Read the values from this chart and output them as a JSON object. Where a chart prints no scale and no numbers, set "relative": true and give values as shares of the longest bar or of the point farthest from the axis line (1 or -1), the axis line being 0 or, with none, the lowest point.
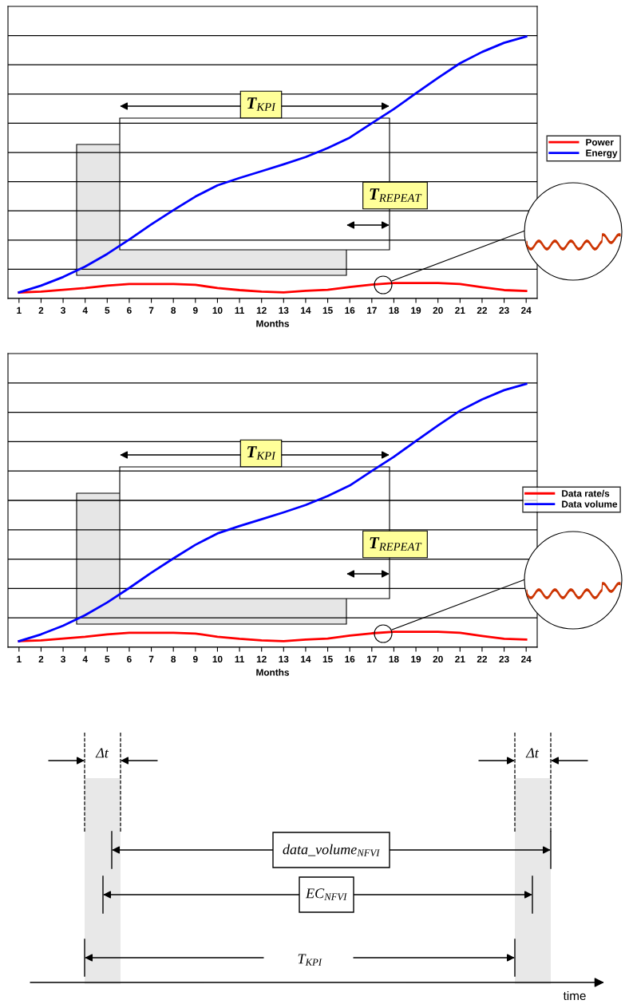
{
  "chart_data": [
    {
      "type": "line",
      "relative": true,
      "xlabel": "Months",
      "grid": "y",
      "legend": "right",
      "tick_labels": "x",
      "categories": [
        "1",
        "2",
        "3",
        "4",
        "5",
        "6",
        "7",
        "8",
        "9",
        "10",
        "11",
        "12",
        "13",
        "14",
        "15",
        "16",
        "17",
        "18",
        "19",
        "20",
        "21",
        "22",
        "23",
        "24"
      ],
      "series": [
        {
          "name": "Power",
          "color": "#ff0000",
          "values": [
            0.023,
            0.026,
            0.033,
            0.04,
            0.049,
            0.055,
            0.055,
            0.055,
            0.052,
            0.04,
            0.032,
            0.026,
            0.023,
            0.029,
            0.033,
            0.044,
            0.053,
            0.059,
            0.059,
            0.059,
            0.055,
            0.043,
            0.032,
            0.029
          ]
        },
        {
          "name": "Energy",
          "color": "#0000ff",
          "values": [
            0.023,
            0.049,
            0.082,
            0.122,
            0.17,
            0.225,
            0.283,
            0.337,
            0.389,
            0.432,
            0.46,
            0.486,
            0.512,
            0.54,
            0.574,
            0.614,
            0.669,
            0.723,
            0.783,
            0.842,
            0.898,
            0.941,
            0.976,
            1
          ]
        }
      ],
      "annotations": [
        "T$_{KPI}$",
        "T$_{REPEAT}$"
      ]
    },
    {
      "type": "line",
      "relative": true,
      "xlabel": "Months",
      "grid": "y",
      "legend": "right",
      "tick_labels": "x",
      "categories": [
        "1",
        "2",
        "3",
        "4",
        "5",
        "6",
        "7",
        "8",
        "9",
        "10",
        "11",
        "12",
        "13",
        "14",
        "15",
        "16",
        "17",
        "18",
        "19",
        "20",
        "21",
        "22",
        "23",
        "24"
      ],
      "series": [
        {
          "name": "Data rate/s",
          "color": "#ff0000",
          "values": [
            0.023,
            0.026,
            0.033,
            0.04,
            0.049,
            0.055,
            0.055,
            0.055,
            0.052,
            0.04,
            0.032,
            0.026,
            0.023,
            0.029,
            0.033,
            0.044,
            0.053,
            0.059,
            0.059,
            0.059,
            0.055,
            0.043,
            0.032,
            0.029
          ]
        },
        {
          "name": "Data volume",
          "color": "#0000ff",
          "values": [
            0.023,
            0.049,
            0.082,
            0.122,
            0.17,
            0.225,
            0.283,
            0.337,
            0.389,
            0.432,
            0.46,
            0.486,
            0.512,
            0.54,
            0.574,
            0.614,
            0.669,
            0.723,
            0.783,
            0.842,
            0.898,
            0.941,
            0.976,
            1
          ]
        }
      ],
      "annotations": [
        "T$_{KPI}$",
        "T$_{REPEAT}$"
      ]
    },
    {
      "type": "other",
      "xlabel": "time",
      "annotations": [
        "Δt",
        "Δt",
        "data_volume$_{NFVI}$",
        "EC$_{NFVI}$",
        "T$_{KPI}$"
      ]
    }
  ]
}
